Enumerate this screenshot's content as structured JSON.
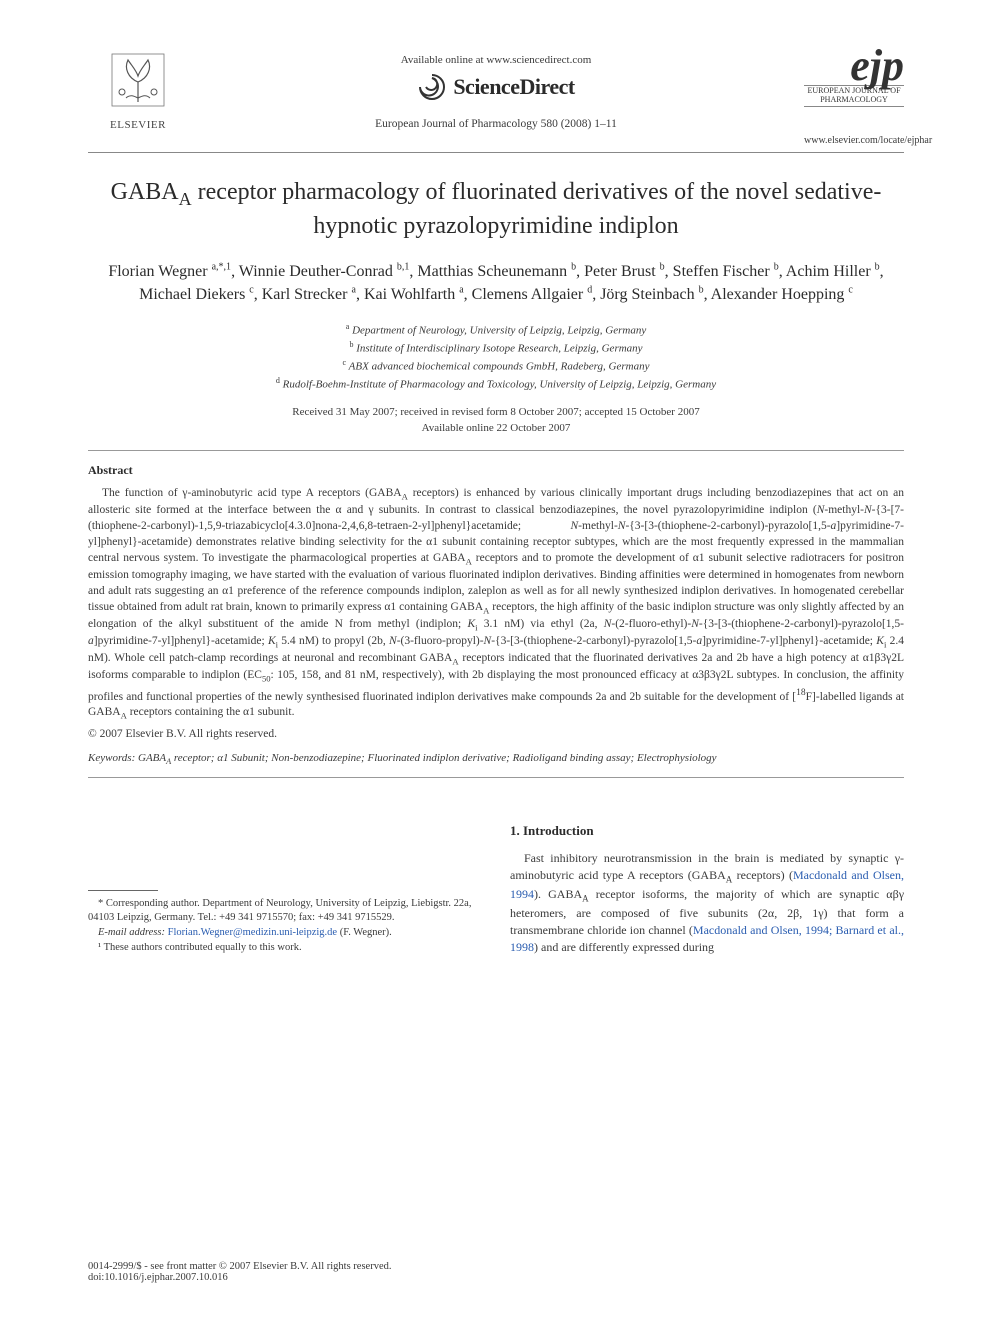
{
  "header": {
    "elsevier_label": "ELSEVIER",
    "available_online": "Available online at www.sciencedirect.com",
    "sciencedirect": "ScienceDirect",
    "journal_ref": "European Journal of Pharmacology 580 (2008) 1–11",
    "ejp_logo": "ejp",
    "ejp_sub1": "EUROPEAN JOURNAL OF",
    "ejp_sub2": "PHARMACOLOGY",
    "ejp_url": "www.elsevier.com/locate/ejphar"
  },
  "title": "GABAA receptor pharmacology of fluorinated derivatives of the novel sedative-hypnotic pyrazolopyrimidine indiplon",
  "authors_html": "Florian Wegner <sup>a,*,1</sup>, Winnie Deuther-Conrad <sup>b,1</sup>, Matthias Scheunemann <sup>b</sup>, Peter Brust <sup>b</sup>, Steffen Fischer <sup>b</sup>, Achim Hiller <sup>b</sup>, Michael Diekers <sup>c</sup>, Karl Strecker <sup>a</sup>, Kai Wohlfarth <sup>a</sup>, Clemens Allgaier <sup>d</sup>, Jörg Steinbach <sup>b</sup>, Alexander Hoepping <sup>c</sup>",
  "affiliations": {
    "a": "Department of Neurology, University of Leipzig, Leipzig, Germany",
    "b": "Institute of Interdisciplinary Isotope Research, Leipzig, Germany",
    "c": "ABX advanced biochemical compounds GmbH, Radeberg, Germany",
    "d": "Rudolf-Boehm-Institute of Pharmacology and Toxicology, University of Leipzig, Leipzig, Germany"
  },
  "dates": {
    "line1": "Received 31 May 2007; received in revised form 8 October 2007; accepted 15 October 2007",
    "line2": "Available online 22 October 2007"
  },
  "abstract_heading": "Abstract",
  "abstract_html": "The function of γ-aminobutyric acid type A receptors (GABA<sub>A</sub> receptors) is enhanced by various clinically important drugs including benzodiazepines that act on an allosteric site formed at the interface between the α and γ subunits. In contrast to classical benzodiazepines, the novel pyrazolopyrimidine indiplon (<i>N</i>-methyl-<i>N</i>-{3-[7-(thiophene-2-carbonyl)-1,5,9-triazabicyclo[4.3.0]nona-2,4,6,8-tetraen-2-yl]phenyl}acetamide; <i>N</i>-methyl-<i>N</i>-{3-[3-(thiophene-2-carbonyl)-pyrazolo[1,5-<i>a</i>]pyrimidine-7-yl]phenyl}-acetamide) demonstrates relative binding selectivity for the α1 subunit containing receptor subtypes, which are the most frequently expressed in the mammalian central nervous system. To investigate the pharmacological properties at GABA<sub>A</sub> receptors and to promote the development of α1 subunit selective radiotracers for positron emission tomography imaging, we have started with the evaluation of various fluorinated indiplon derivatives. Binding affinities were determined in homogenates from newborn and adult rats suggesting an α1 preference of the reference compounds indiplon, zaleplon as well as for all newly synthesized indiplon derivatives. In homogenated cerebellar tissue obtained from adult rat brain, known to primarily express α1 containing GABA<sub>A</sub> receptors, the high affinity of the basic indiplon structure was only slightly affected by an elongation of the alkyl substituent of the amide N from methyl (indiplon; <i>K</i><sub>i</sub> 3.1 nM) via ethyl (2a, <i>N</i>-(2-fluoro-ethyl)-<i>N</i>-{3-[3-(thiophene-2-carbonyl)-pyrazolo[1,5-<i>a</i>]pyrimidine-7-yl]phenyl}-acetamide; <i>K</i><sub>i</sub> 5.4 nM) to propyl (2b, <i>N</i>-(3-fluoro-propyl)-<i>N</i>-{3-[3-(thiophene-2-carbonyl)-pyrazolo[1,5-<i>a</i>]pyrimidine-7-yl]phenyl}-acetamide; <i>K</i><sub>i</sub> 2.4 nM). Whole cell patch-clamp recordings at neuronal and recombinant GABA<sub>A</sub> receptors indicated that the fluorinated derivatives 2a and 2b have a high potency at α1β3γ2L isoforms comparable to indiplon (EC<sub>50</sub>: 105, 158, and 81 nM, respectively), with 2b displaying the most pronounced efficacy at α3β3γ2L subtypes. In conclusion, the affinity profiles and functional properties of the newly synthesised fluorinated indiplon derivatives make compounds 2a and 2b suitable for the development of [<sup>18</sup>F]-labelled ligands at GABA<sub>A</sub> receptors containing the α1 subunit.",
  "copyright": "© 2007 Elsevier B.V. All rights reserved.",
  "keywords_label": "Keywords:",
  "keywords": "GABAA receptor; α1 Subunit; Non-benzodiazepine; Fluorinated indiplon derivative; Radioligand binding assay; Electrophysiology",
  "footnotes": {
    "corr": "* Corresponding author. Department of Neurology, University of Leipzig, Liebigstr. 22a, 04103 Leipzig, Germany. Tel.: +49 341 9715570; fax: +49 341 9715529.",
    "email_label": "E-mail address:",
    "email": "Florian.Wegner@medizin.uni-leipzig.de",
    "email_who": "(F. Wegner).",
    "equal": "¹ These authors contributed equally to this work."
  },
  "intro": {
    "heading": "1. Introduction",
    "body_html": "Fast inhibitory neurotransmission in the brain is mediated by synaptic γ-aminobutyric acid type A receptors (GABA<sub>A</sub> receptors) (<span class=\"ref\">Macdonald and Olsen, 1994</span>). GABA<sub>A</sub> receptor isoforms, the majority of which are synaptic αβγ heteromers, are composed of five subunits (2α, 2β, 1γ) that form a transmembrane chloride ion channel (<span class=\"ref\">Macdonald and Olsen, 1994; Barnard et al., 1998</span>) and are differently expressed during"
  },
  "footer": {
    "line1": "0014-2999/$ - see front matter © 2007 Elsevier B.V. All rights reserved.",
    "doi": "doi:10.1016/j.ejphar.2007.10.016"
  },
  "colors": {
    "text": "#3a3a3a",
    "heading": "#2b2b2b",
    "link": "#2a5db0",
    "rule": "#999999",
    "background": "#ffffff"
  },
  "typography": {
    "title_fontsize_pt": 18,
    "authors_fontsize_pt": 12,
    "body_fontsize_pt": 9,
    "abstract_fontsize_pt": 9,
    "font_family": "Times New Roman"
  }
}
